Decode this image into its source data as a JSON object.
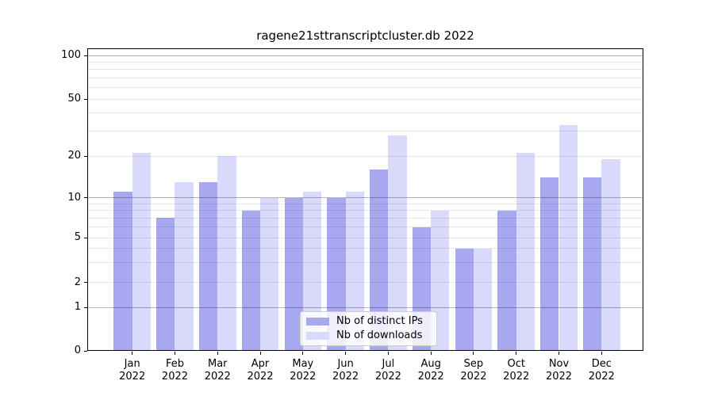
{
  "title": "ragene21sttranscriptcluster.db 2022",
  "chart_data": {
    "type": "bar",
    "title": "ragene21sttranscriptcluster.db 2022",
    "categories": [
      "Jan 2022",
      "Feb 2022",
      "Mar 2022",
      "Apr 2022",
      "May 2022",
      "Jun 2022",
      "Jul 2022",
      "Aug 2022",
      "Sep 2022",
      "Oct 2022",
      "Nov 2022",
      "Dec 2022"
    ],
    "series": [
      {
        "name": "Nb of distinct IPs",
        "color": "#a8a8f0",
        "values": [
          11,
          7,
          13,
          8,
          10,
          10,
          16,
          6,
          4,
          8,
          14,
          14
        ]
      },
      {
        "name": "Nb of downloads",
        "color": "#d9d9fb",
        "values": [
          21,
          13,
          20,
          10,
          11,
          11,
          28,
          8,
          4,
          21,
          33,
          19
        ]
      }
    ],
    "xlabel": "",
    "ylabel": "",
    "y_ticks": [
      0,
      1,
      2,
      5,
      10,
      20,
      50,
      100
    ],
    "y_major_gridlines": [
      1,
      10,
      100
    ],
    "y_minor_gridlines": [
      2,
      3,
      4,
      5,
      6,
      7,
      8,
      9,
      20,
      30,
      40,
      50,
      60,
      70,
      80,
      90
    ],
    "ylim": [
      0,
      112
    ],
    "yscale": "log-like (linear below 1)",
    "grid": true,
    "legend_position": "lower center",
    "legend": [
      "Nb of distinct IPs",
      "Nb of downloads"
    ]
  }
}
